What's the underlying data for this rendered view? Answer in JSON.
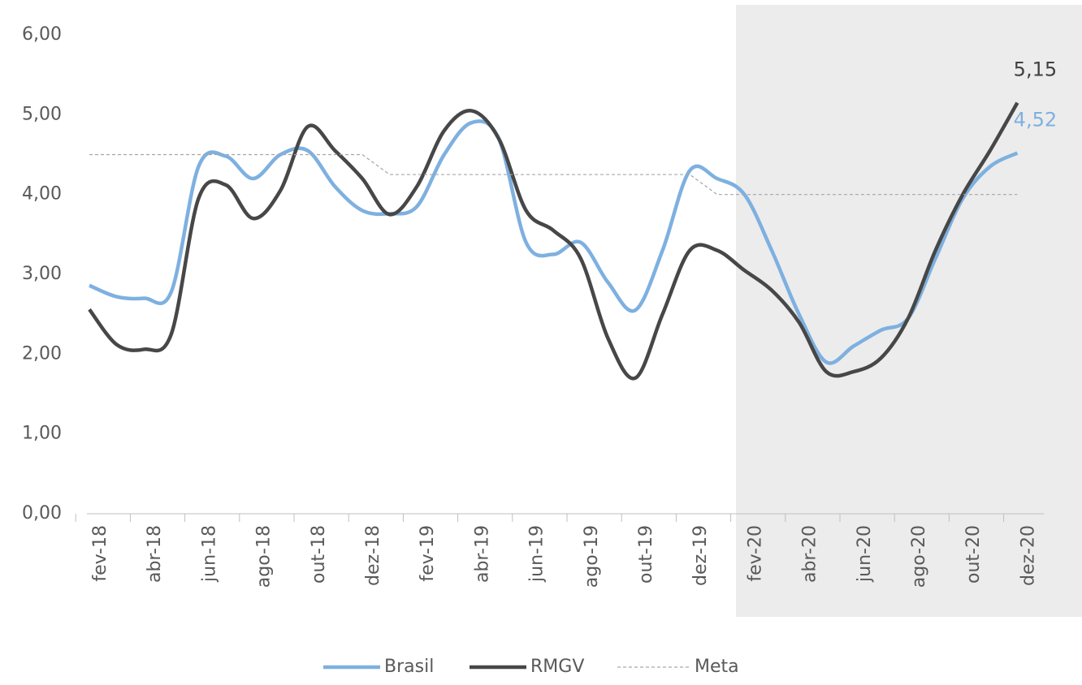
{
  "chart_data": {
    "type": "line",
    "categories": [
      "fev-18",
      null,
      "abr-18",
      null,
      "jun-18",
      null,
      "ago-18",
      null,
      "out-18",
      null,
      "dez-18",
      null,
      "fev-19",
      null,
      "abr-19",
      null,
      "jun-19",
      null,
      "ago-19",
      null,
      "out-19",
      null,
      "dez-19",
      null,
      "fev-20",
      null,
      "abr-20",
      null,
      "jun-20",
      null,
      "ago-20",
      null,
      "out-20",
      null,
      "dez-20"
    ],
    "series": [
      {
        "name": "Brasil",
        "color": "#7eb0e0",
        "values": [
          2.86,
          2.72,
          2.7,
          2.78,
          4.35,
          4.48,
          4.2,
          4.5,
          4.55,
          4.1,
          3.8,
          3.76,
          3.85,
          4.5,
          4.9,
          4.7,
          3.4,
          3.25,
          3.4,
          2.9,
          2.55,
          3.3,
          4.3,
          4.2,
          4.0,
          3.3,
          2.5,
          1.9,
          2.1,
          2.3,
          2.45,
          3.2,
          3.95,
          4.35,
          4.52
        ],
        "value_labels": [
          null,
          null,
          null,
          null,
          null,
          null,
          null,
          null,
          null,
          null,
          null,
          null,
          null,
          null,
          null,
          null,
          null,
          null,
          null,
          null,
          null,
          null,
          null,
          null,
          null,
          null,
          null,
          null,
          null,
          null,
          null,
          null,
          null,
          null,
          "4,52"
        ]
      },
      {
        "name": "RMGV",
        "color": "#474747",
        "values": [
          2.56,
          2.12,
          2.06,
          2.25,
          3.95,
          4.12,
          3.7,
          4.05,
          4.85,
          4.55,
          4.2,
          3.75,
          4.1,
          4.8,
          5.05,
          4.7,
          3.8,
          3.55,
          3.2,
          2.2,
          1.7,
          2.5,
          3.3,
          3.3,
          3.05,
          2.8,
          2.4,
          1.78,
          1.78,
          1.95,
          2.45,
          3.3,
          4.0,
          4.55,
          5.15
        ],
        "value_labels": [
          null,
          null,
          null,
          null,
          null,
          null,
          null,
          null,
          null,
          null,
          null,
          null,
          null,
          null,
          null,
          null,
          null,
          null,
          null,
          null,
          null,
          null,
          null,
          null,
          null,
          null,
          null,
          null,
          null,
          null,
          null,
          null,
          null,
          null,
          "5,15"
        ]
      },
      {
        "name": "Meta",
        "color": "#a6a6a6",
        "dashed": true,
        "values": [
          4.5,
          4.5,
          4.5,
          4.5,
          4.5,
          4.5,
          4.5,
          4.5,
          4.5,
          4.5,
          4.5,
          4.25,
          4.25,
          4.25,
          4.25,
          4.25,
          4.25,
          4.25,
          4.25,
          4.25,
          4.25,
          4.25,
          4.25,
          4.0,
          4.0,
          4.0,
          4.0,
          4.0,
          4.0,
          4.0,
          4.0,
          4.0,
          4.0,
          4.0,
          4.0
        ]
      }
    ],
    "ylim": [
      0,
      6
    ],
    "yticks": [
      {
        "value": 0,
        "label": "0,00"
      },
      {
        "value": 1,
        "label": "1,00"
      },
      {
        "value": 2,
        "label": "2,00"
      },
      {
        "value": 3,
        "label": "3,00"
      },
      {
        "value": 4,
        "label": "4,00"
      },
      {
        "value": 5,
        "label": "5,00"
      },
      {
        "value": 6,
        "label": "6,00"
      }
    ],
    "grid": false,
    "legend": "bottom"
  }
}
